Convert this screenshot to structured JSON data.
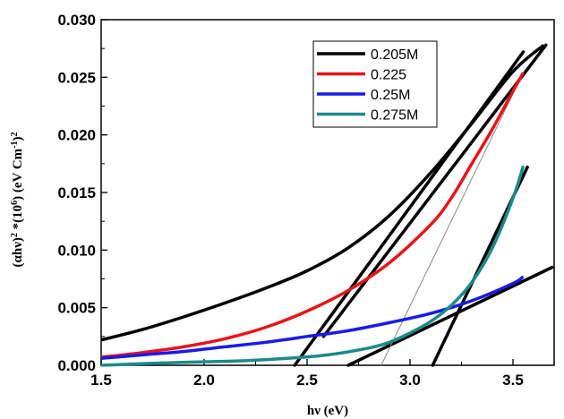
{
  "chart_data": {
    "type": "line",
    "xlabel": "hν (eV)",
    "ylabel_parts": [
      "(αhν)",
      "2",
      " *(10",
      "6",
      ") (eV Cm",
      "-1",
      ")",
      "2"
    ],
    "xlim": [
      1.5,
      3.7
    ],
    "ylim": [
      0.0,
      0.03
    ],
    "x_ticks": [
      "1.5",
      "2.0",
      "2.5",
      "3.0",
      "3.5"
    ],
    "y_ticks": [
      "0.000",
      "0.005",
      "0.010",
      "0.015",
      "0.020",
      "0.025",
      "0.030"
    ],
    "grid": false,
    "legend_position": "top-right",
    "series": [
      {
        "name": "0.205M",
        "color": "#000000",
        "x": [
          1.5,
          1.7,
          1.9,
          2.1,
          2.3,
          2.5,
          2.7,
          2.9,
          3.1,
          3.3,
          3.5,
          3.65
        ],
        "y": [
          0.0022,
          0.0031,
          0.0042,
          0.0054,
          0.0067,
          0.0082,
          0.0102,
          0.013,
          0.0167,
          0.021,
          0.0255,
          0.0278
        ]
      },
      {
        "name": "0.225",
        "color": "#e8141b",
        "x": [
          1.5,
          1.7,
          1.9,
          2.1,
          2.3,
          2.5,
          2.7,
          2.9,
          3.1,
          3.2,
          3.3,
          3.4,
          3.5,
          3.55
        ],
        "y": [
          0.0007,
          0.0011,
          0.0016,
          0.0023,
          0.0033,
          0.0047,
          0.0065,
          0.0089,
          0.0122,
          0.0145,
          0.0175,
          0.0205,
          0.0238,
          0.0254
        ]
      },
      {
        "name": "0.25M",
        "color": "#1a1ae8",
        "x": [
          1.5,
          1.7,
          1.9,
          2.1,
          2.3,
          2.5,
          2.7,
          2.9,
          3.1,
          3.3,
          3.5,
          3.55
        ],
        "y": [
          0.0006,
          0.0009,
          0.0012,
          0.0016,
          0.002,
          0.0025,
          0.003,
          0.0037,
          0.0045,
          0.0056,
          0.0071,
          0.0077
        ]
      },
      {
        "name": "0.275M",
        "color": "#1b8a8a",
        "x": [
          1.5,
          1.8,
          2.0,
          2.2,
          2.4,
          2.6,
          2.8,
          2.9,
          3.0,
          3.1,
          3.2,
          3.3,
          3.4,
          3.5,
          3.55
        ],
        "y": [
          0.0,
          0.0002,
          0.0003,
          0.0004,
          0.0006,
          0.0009,
          0.0015,
          0.002,
          0.0028,
          0.0038,
          0.0052,
          0.0072,
          0.0102,
          0.0145,
          0.0173
        ]
      }
    ],
    "fit_lines": [
      {
        "color": "#000000",
        "from": [
          2.44,
          0.0
        ],
        "to": [
          3.55,
          0.0272
        ]
      },
      {
        "color": "#000000",
        "from": [
          2.58,
          0.0025
        ],
        "to": [
          3.66,
          0.0278
        ]
      },
      {
        "color": "#000000",
        "from": [
          3.11,
          0.0
        ],
        "to": [
          3.57,
          0.0172
        ]
      },
      {
        "color": "#000000",
        "from": [
          2.7,
          0.0
        ],
        "to": [
          3.69,
          0.0085
        ]
      },
      {
        "color": "#888888",
        "from": [
          2.86,
          0.0
        ],
        "to": [
          3.55,
          0.0254
        ]
      }
    ]
  }
}
